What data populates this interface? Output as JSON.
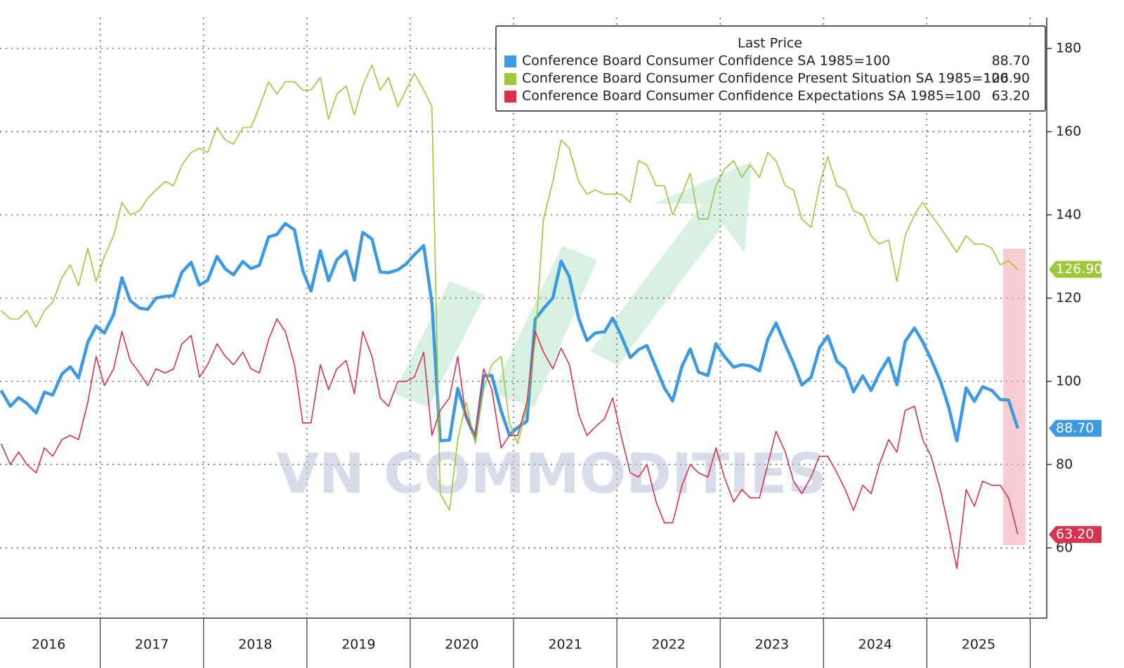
{
  "chart_data": {
    "type": "line",
    "legend_title": "Last Price",
    "watermark": "VN COMMODITIES",
    "xlim": [
      2016.03,
      2026.16
    ],
    "ylim": [
      43,
      187
    ],
    "yticks": [
      60,
      80,
      100,
      120,
      140,
      160,
      180
    ],
    "xgrid": [
      2017,
      2018,
      2019,
      2020,
      2021,
      2022,
      2023,
      2024,
      2025,
      2026
    ],
    "xticks": [
      {
        "value": 2016.5,
        "label": "2016"
      },
      {
        "value": 2017.5,
        "label": "2017"
      },
      {
        "value": 2018.5,
        "label": "2018"
      },
      {
        "value": 2019.5,
        "label": "2019"
      },
      {
        "value": 2020.5,
        "label": "2020"
      },
      {
        "value": 2021.5,
        "label": "2021"
      },
      {
        "value": 2022.5,
        "label": "2022"
      },
      {
        "value": 2023.5,
        "label": "2023"
      },
      {
        "value": 2024.5,
        "label": "2024"
      },
      {
        "value": 2025.5,
        "label": "2025"
      }
    ],
    "grid": true,
    "x": [
      2016.04,
      2016.13,
      2016.21,
      2016.29,
      2016.38,
      2016.46,
      2016.54,
      2016.63,
      2016.71,
      2016.79,
      2016.88,
      2016.96,
      2017.04,
      2017.13,
      2017.21,
      2017.29,
      2017.38,
      2017.46,
      2017.54,
      2017.63,
      2017.71,
      2017.79,
      2017.88,
      2017.96,
      2018.04,
      2018.13,
      2018.21,
      2018.29,
      2018.38,
      2018.46,
      2018.54,
      2018.63,
      2018.71,
      2018.79,
      2018.88,
      2018.96,
      2019.04,
      2019.13,
      2019.21,
      2019.29,
      2019.38,
      2019.46,
      2019.54,
      2019.63,
      2019.71,
      2019.79,
      2019.88,
      2019.96,
      2020.04,
      2020.13,
      2020.21,
      2020.29,
      2020.38,
      2020.46,
      2020.54,
      2020.63,
      2020.71,
      2020.79,
      2020.88,
      2020.96,
      2021.04,
      2021.13,
      2021.21,
      2021.29,
      2021.38,
      2021.46,
      2021.54,
      2021.63,
      2021.71,
      2021.79,
      2021.88,
      2021.96,
      2022.04,
      2022.13,
      2022.21,
      2022.29,
      2022.38,
      2022.46,
      2022.54,
      2022.63,
      2022.71,
      2022.79,
      2022.88,
      2022.96,
      2023.04,
      2023.13,
      2023.21,
      2023.29,
      2023.38,
      2023.46,
      2023.54,
      2023.63,
      2023.71,
      2023.79,
      2023.88,
      2023.96,
      2024.04,
      2024.13,
      2024.21,
      2024.29,
      2024.38,
      2024.46,
      2024.54,
      2024.63,
      2024.71,
      2024.79,
      2024.88,
      2024.96,
      2025.04,
      2025.13,
      2025.21,
      2025.29,
      2025.38,
      2025.46,
      2025.54,
      2025.63,
      2025.71,
      2025.79,
      2025.88
    ],
    "series": [
      {
        "name": "Conference Board Consumer Confidence SA 1985=100",
        "color": "#3d9ae2",
        "width": 4.5,
        "last_label": "88.70",
        "values": [
          97.8,
          94.0,
          96.1,
          94.7,
          92.4,
          97.4,
          96.7,
          101.8,
          103.5,
          100.8,
          109.4,
          113.3,
          111.6,
          116.1,
          124.9,
          119.4,
          117.6,
          117.3,
          120.0,
          120.4,
          120.6,
          126.2,
          128.6,
          123.1,
          124.3,
          130.0,
          127.0,
          125.6,
          128.8,
          127.1,
          127.9,
          134.7,
          135.3,
          137.9,
          136.4,
          126.6,
          121.7,
          131.4,
          124.2,
          129.2,
          131.3,
          124.3,
          135.8,
          134.2,
          126.3,
          126.1,
          126.8,
          128.2,
          130.4,
          132.6,
          118.8,
          85.7,
          85.9,
          98.3,
          91.7,
          86.3,
          101.3,
          101.4,
          92.9,
          87.1,
          88.9,
          90.4,
          114.9,
          117.5,
          120.0,
          128.9,
          125.1,
          115.2,
          109.8,
          111.6,
          111.9,
          115.2,
          111.1,
          105.7,
          107.6,
          108.6,
          103.2,
          98.4,
          95.3,
          103.6,
          107.8,
          102.2,
          101.4,
          109.0,
          106.0,
          103.4,
          104.0,
          103.7,
          102.5,
          110.1,
          114.0,
          108.7,
          104.3,
          99.1,
          101.0,
          108.0,
          110.9,
          104.8,
          103.1,
          97.5,
          101.3,
          97.8,
          101.9,
          105.6,
          99.2,
          109.6,
          112.8,
          109.5,
          105.3,
          100.1,
          93.9,
          85.7,
          98.4,
          95.2,
          98.7,
          97.8,
          95.6,
          95.5,
          88.7
        ]
      },
      {
        "name": "Conference Board Consumer Confidence Present Situation SA 1985=100",
        "color": "#9cc83a",
        "width": 1.6,
        "last_label": "126.90",
        "values": [
          117,
          115,
          115,
          117,
          113,
          117,
          119,
          125,
          128,
          123,
          132,
          124,
          130,
          135,
          143,
          140,
          141,
          144,
          146,
          148,
          147,
          152,
          155,
          156,
          155,
          161,
          158,
          157,
          161,
          161,
          166,
          172,
          169,
          172,
          172,
          170,
          170,
          173,
          163,
          169,
          171,
          164,
          171,
          176,
          170,
          173,
          166,
          170,
          174,
          170,
          166,
          73,
          69,
          86,
          95,
          85,
          98,
          104,
          106,
          90,
          85,
          94,
          110,
          139,
          148,
          158,
          156,
          148,
          145,
          146,
          145,
          145,
          145,
          143,
          153,
          152,
          147,
          147,
          140,
          145,
          150,
          139,
          139,
          147,
          151,
          153,
          149,
          152,
          149,
          155,
          153,
          147,
          146,
          139,
          137,
          147,
          154,
          147,
          146,
          141,
          140,
          135,
          133,
          134,
          124,
          135,
          140,
          143,
          140,
          137,
          134,
          131,
          135,
          133,
          133,
          132,
          128,
          129,
          126.9
        ]
      },
      {
        "name": "Conference Board Consumer Confidence Expectations SA 1985=100",
        "color": "#d8324f",
        "width": 1.6,
        "last_label": "63.20",
        "values": [
          85,
          80,
          83,
          80,
          78,
          84,
          82,
          86,
          87,
          86,
          95,
          106,
          99,
          103,
          112,
          105,
          102,
          99,
          103,
          102,
          103,
          109,
          111,
          101,
          104,
          109,
          106,
          104,
          107,
          103,
          102,
          110,
          115,
          112,
          104,
          90,
          90,
          104,
          98,
          103,
          105,
          97,
          112,
          106,
          96,
          94,
          100,
          100,
          101,
          107,
          87,
          93,
          96,
          106,
          91,
          87,
          103,
          98,
          84,
          87,
          87,
          95,
          112,
          107,
          103,
          108,
          104,
          92,
          87,
          89,
          91,
          96,
          87,
          78,
          77,
          80,
          71,
          66,
          66,
          75,
          80,
          78,
          77,
          84,
          77,
          71,
          74,
          72,
          72,
          80,
          88,
          83,
          76,
          73,
          77,
          82,
          82,
          78,
          74,
          69,
          75,
          73,
          80,
          86,
          83,
          93,
          94,
          86,
          82,
          74,
          65,
          55,
          74,
          70,
          76,
          75,
          75,
          72,
          63.2
        ]
      }
    ]
  }
}
